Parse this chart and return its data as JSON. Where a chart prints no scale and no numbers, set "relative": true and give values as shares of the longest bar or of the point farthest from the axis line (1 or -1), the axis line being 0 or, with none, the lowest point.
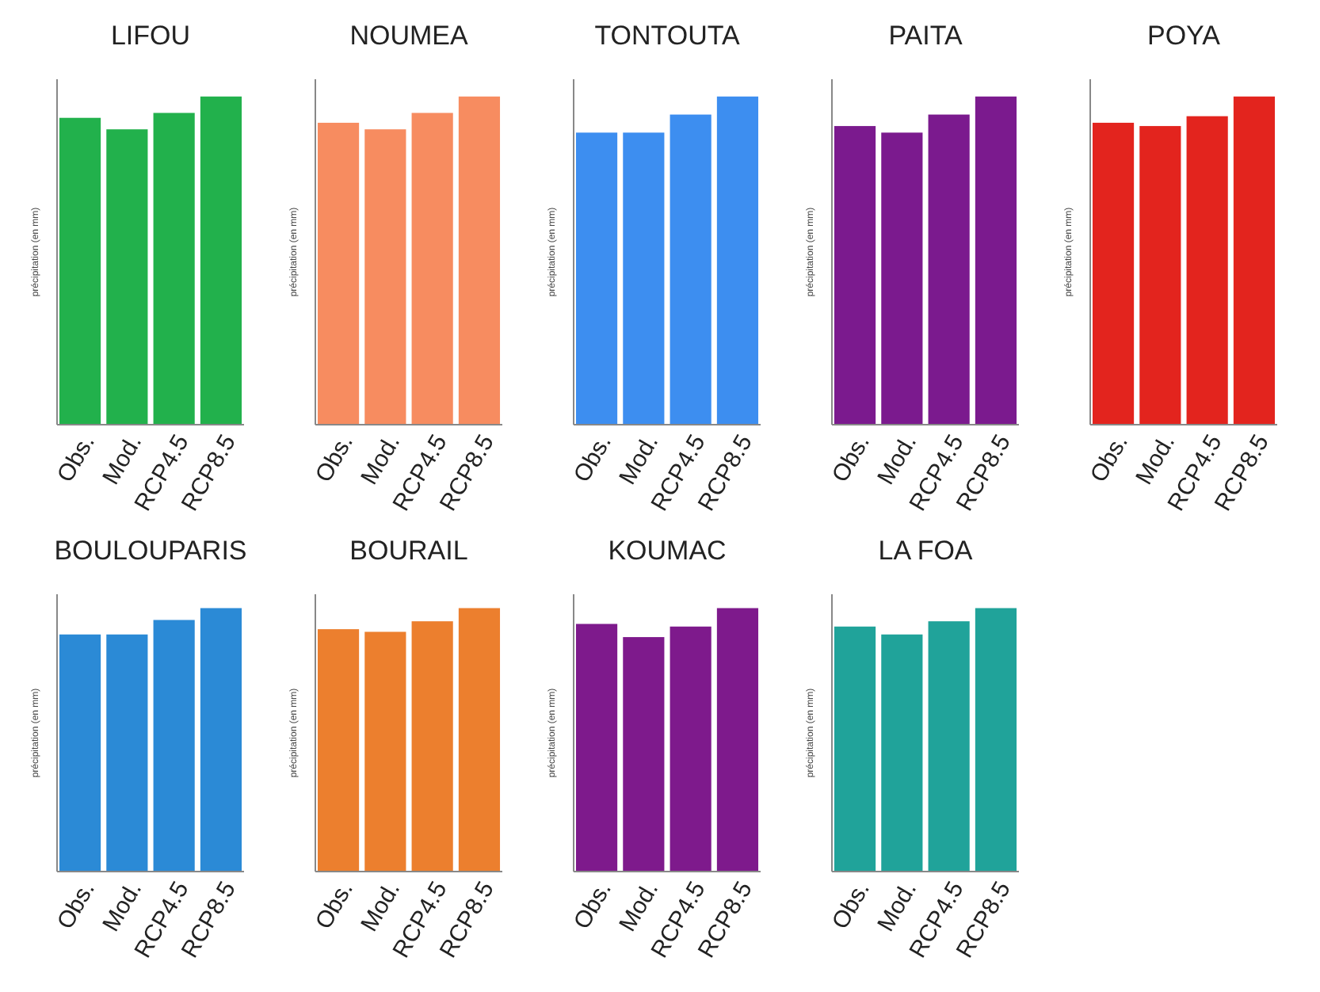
{
  "chart_data": [
    {
      "type": "bar",
      "title": "LIFOU",
      "ylabel": "précipitation (en mm)",
      "relative": true,
      "categories": [
        "Obs.",
        "Mod.",
        "RCP4.5",
        "RCP8.5"
      ],
      "values": [
        0.935,
        0.9,
        0.95,
        1
      ],
      "color": "#22b14c"
    },
    {
      "type": "bar",
      "title": "NOUMEA",
      "ylabel": "précipitation (en mm)",
      "relative": true,
      "categories": [
        "Obs.",
        "Mod.",
        "RCP4.5",
        "RCP8.5"
      ],
      "values": [
        0.92,
        0.9,
        0.95,
        1
      ],
      "color": "#f78c60"
    },
    {
      "type": "bar",
      "title": "TONTOUTA",
      "ylabel": "précipitation (en mm)",
      "relative": true,
      "categories": [
        "Obs.",
        "Mod.",
        "RCP4.5",
        "RCP8.5"
      ],
      "values": [
        0.89,
        0.89,
        0.945,
        1
      ],
      "color": "#3d8ef0"
    },
    {
      "type": "bar",
      "title": "PAITA",
      "ylabel": "précipitation (en mm)",
      "relative": true,
      "categories": [
        "Obs.",
        "Mod.",
        "RCP4.5",
        "RCP8.5"
      ],
      "values": [
        0.91,
        0.89,
        0.945,
        1
      ],
      "color": "#7b1a8e"
    },
    {
      "type": "bar",
      "title": "POYA",
      "ylabel": "précipitation (en mm)",
      "relative": true,
      "categories": [
        "Obs.",
        "Mod.",
        "RCP4.5",
        "RCP8.5"
      ],
      "values": [
        0.92,
        0.91,
        0.94,
        1
      ],
      "color": "#e3241e"
    },
    {
      "type": "bar",
      "title": "BOULOUPARIS",
      "ylabel": "précipitation (en mm)",
      "relative": true,
      "categories": [
        "Obs.",
        "Mod.",
        "RCP4.5",
        "RCP8.5"
      ],
      "values": [
        0.9,
        0.9,
        0.955,
        1
      ],
      "color": "#2b8ad6"
    },
    {
      "type": "bar",
      "title": "BOURAIL",
      "ylabel": "précipitation (en mm)",
      "relative": true,
      "categories": [
        "Obs.",
        "Mod.",
        "RCP4.5",
        "RCP8.5"
      ],
      "values": [
        0.92,
        0.91,
        0.95,
        1
      ],
      "color": "#ec7f2e"
    },
    {
      "type": "bar",
      "title": "KOUMAC",
      "ylabel": "précipitation (en mm)",
      "relative": true,
      "categories": [
        "Obs.",
        "Mod.",
        "RCP4.5",
        "RCP8.5"
      ],
      "values": [
        0.94,
        0.89,
        0.93,
        1
      ],
      "color": "#7e1a8c"
    },
    {
      "type": "bar",
      "title": "LA FOA",
      "ylabel": "précipitation (en mm)",
      "relative": true,
      "categories": [
        "Obs.",
        "Mod.",
        "RCP4.5",
        "RCP8.5"
      ],
      "values": [
        0.93,
        0.9,
        0.95,
        1
      ],
      "color": "#20a39a"
    }
  ]
}
